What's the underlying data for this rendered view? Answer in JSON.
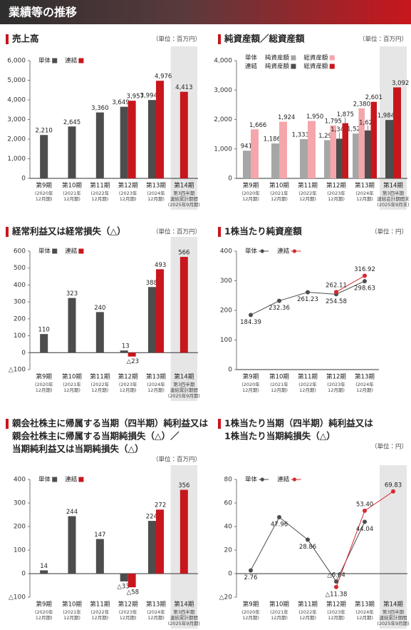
{
  "header": {
    "title": "業績等の推移"
  },
  "chart_data": [
    {
      "type": "bar",
      "title": [
        "売上高"
      ],
      "unit": "（単位：百万円）",
      "categories": [
        [
          "第9期",
          "(2020年",
          "12月期)"
        ],
        [
          "第10期",
          "(2021年",
          "12月期)"
        ],
        [
          "第11期",
          "(2022年",
          "12月期)"
        ],
        [
          "第12期",
          "(2023年",
          "12月期)"
        ],
        [
          "第13期",
          "(2024年",
          "12月期)"
        ],
        [
          "第14期",
          "第3四半期",
          "連結累計期間",
          "(2025年9月期)"
        ]
      ],
      "ylim": [
        0,
        6000
      ],
      "yticks": [
        0,
        {
          "value": 1000,
          "label": "1,000"
        },
        {
          "value": 2000,
          "label": "2,000"
        },
        {
          "value": 3000,
          "label": "3,000"
        },
        {
          "value": 4000,
          "label": "4,000"
        },
        {
          "value": 5000,
          "label": "5,000"
        },
        {
          "value": 6000,
          "label": "6,000"
        }
      ],
      "series": [
        {
          "name": "単体",
          "color": "#4d4d4d",
          "values": [
            2210,
            2645,
            3360,
            3649,
            3994,
            null
          ],
          "value_labels": [
            "2,210",
            "2,645",
            "3,360",
            "3,649",
            "3,994",
            null
          ]
        },
        {
          "name": "連結",
          "color": "#c8161d",
          "values": [
            null,
            null,
            null,
            3957,
            4976,
            4413
          ],
          "value_labels": [
            null,
            null,
            null,
            "3,957",
            "4,976",
            "4,413"
          ]
        }
      ]
    },
    {
      "type": "bar",
      "title": [
        "純資産額／総資産額"
      ],
      "unit": "（単位：百万円）",
      "categories": [
        [
          "第9期",
          "(2020年",
          "12月期)"
        ],
        [
          "第10期",
          "(2021年",
          "12月期)"
        ],
        [
          "第11期",
          "(2022年",
          "12月期)"
        ],
        [
          "第12期",
          "(2023年",
          "12月期)"
        ],
        [
          "第13期",
          "(2024年",
          "12月期)"
        ],
        [
          "第14期",
          "第3四半期",
          "連結会計期間末",
          "(2025年9月末)"
        ]
      ],
      "ylim": [
        0,
        4000
      ],
      "yticks": [
        0,
        {
          "value": 1000,
          "label": "1,000"
        },
        {
          "value": 2000,
          "label": "2,000"
        },
        {
          "value": 3000,
          "label": "3,000"
        },
        {
          "value": 4000,
          "label": "4,000"
        }
      ],
      "series": [
        {
          "group": "単体",
          "name": "純資産額",
          "color": "#a6a6a6",
          "values": [
            941,
            1186,
            1333,
            1299,
            1524,
            null
          ],
          "value_labels": [
            "941",
            "1,186",
            "1,333",
            "1,299",
            "1,524",
            null
          ]
        },
        {
          "group": "単体",
          "name": "総資産額",
          "color": "#f4a6aa",
          "values": [
            1666,
            1924,
            1950,
            1795,
            2380,
            null
          ],
          "value_labels": [
            "1,666",
            "1,924",
            "1,950",
            "1,795",
            "2,380",
            null
          ]
        },
        {
          "group": "連結",
          "name": "純資産額",
          "color": "#4d4d4d",
          "values": [
            null,
            null,
            null,
            1348,
            1629,
            1984
          ],
          "value_labels": [
            null,
            null,
            null,
            "1,348",
            "1,629",
            "1,984"
          ]
        },
        {
          "group": "連結",
          "name": "総資産額",
          "color": "#c8161d",
          "values": [
            null,
            null,
            null,
            1875,
            2601,
            3092
          ],
          "value_labels": [
            null,
            null,
            null,
            "1,875",
            "2,601",
            "3,092"
          ]
        }
      ]
    },
    {
      "type": "bar",
      "title": [
        "経常利益又は経常損失（△）"
      ],
      "unit": "（単位：百万円）",
      "categories": [
        [
          "第9期",
          "(2020年",
          "12月期)"
        ],
        [
          "第10期",
          "(2021年",
          "12月期)"
        ],
        [
          "第11期",
          "(2022年",
          "12月期)"
        ],
        [
          "第12期",
          "(2023年",
          "12月期)"
        ],
        [
          "第13期",
          "(2024年",
          "12月期)"
        ],
        [
          "第14期",
          "第3四半期",
          "連結累計期間",
          "(2025年9月期)"
        ]
      ],
      "ylim": [
        -100,
        600
      ],
      "yticks": [
        {
          "value": -100,
          "label": "△100"
        },
        0,
        100,
        200,
        300,
        400,
        500,
        600
      ],
      "series": [
        {
          "name": "単体",
          "color": "#4d4d4d",
          "values": [
            110,
            323,
            240,
            13,
            388,
            null
          ]
        },
        {
          "name": "連結",
          "color": "#c8161d",
          "values": [
            null,
            null,
            null,
            -23,
            493,
            566
          ],
          "value_labels": [
            null,
            null,
            null,
            "△23",
            "493",
            "566"
          ]
        }
      ]
    },
    {
      "type": "line",
      "title": [
        "1株当たり純資産額"
      ],
      "unit": "（単位：円）",
      "categories": [
        [
          "第9期",
          "(2020年",
          "12月期)"
        ],
        [
          "第10期",
          "(2021年",
          "12月期)"
        ],
        [
          "第11期",
          "(2022年",
          "12月期)"
        ],
        [
          "第12期",
          "(2023年",
          "12月期)"
        ],
        [
          "第13期",
          "(2024年",
          "12月期)"
        ]
      ],
      "ylim": [
        0,
        400
      ],
      "yticks": [
        0,
        100,
        200,
        300,
        400
      ],
      "series": [
        {
          "name": "単体",
          "color": "#4d4d4d",
          "values": [
            184.39,
            232.36,
            261.23,
            254.58,
            298.63
          ]
        },
        {
          "name": "連結",
          "color": "#d7282f",
          "values": [
            null,
            null,
            null,
            262.11,
            316.92
          ]
        }
      ]
    },
    {
      "type": "bar",
      "title": [
        "親会社株主に帰属する当期（四半期）純利益又は",
        "親会社株主に帰属する当期純損失（△）／",
        "当期純利益又は当期純損失（△）"
      ],
      "unit": "（単位：百万円）",
      "categories": [
        [
          "第9期",
          "(2020年",
          "12月期)"
        ],
        [
          "第10期",
          "(2021年",
          "12月期)"
        ],
        [
          "第11期",
          "(2022年",
          "12月期)"
        ],
        [
          "第12期",
          "(2023年",
          "12月期)"
        ],
        [
          "第13期",
          "(2024年",
          "12月期)"
        ],
        [
          "第14期",
          "第3四半期",
          "連結累計期間",
          "(2025年9月期)"
        ]
      ],
      "ylim": [
        -100,
        400
      ],
      "yticks": [
        {
          "value": -100,
          "label": "△100"
        },
        0,
        100,
        200,
        300,
        400
      ],
      "series": [
        {
          "name": "単体",
          "color": "#4d4d4d",
          "values": [
            14,
            244,
            147,
            -33,
            224,
            null
          ],
          "value_labels": [
            "14",
            "244",
            "147",
            "△33",
            "224",
            null
          ]
        },
        {
          "name": "連結",
          "color": "#c8161d",
          "values": [
            null,
            null,
            null,
            -58,
            272,
            356
          ],
          "value_labels": [
            null,
            null,
            null,
            "△58",
            "272",
            "356"
          ]
        }
      ]
    },
    {
      "type": "line",
      "title": [
        "1株当たり当期（四半期）純利益又は",
        "1株当たり当期純損失（△）"
      ],
      "unit": "（単位：円）",
      "categories": [
        [
          "第9期",
          "(2020年",
          "12月期)"
        ],
        [
          "第10期",
          "(2021年",
          "12月期)"
        ],
        [
          "第11期",
          "(2022年",
          "12月期)"
        ],
        [
          "第12期",
          "(2023年",
          "12月期)"
        ],
        [
          "第13期",
          "(2024年",
          "12月期)"
        ],
        [
          "第14期",
          "第3四半期",
          "連結累計期間",
          "(2025年9月期)"
        ]
      ],
      "ylim": [
        -20,
        80
      ],
      "yticks": [
        {
          "value": -20,
          "label": "△20"
        },
        0,
        20,
        40,
        60,
        80
      ],
      "series": [
        {
          "name": "単体",
          "color": "#4d4d4d",
          "values": [
            2.76,
            47.96,
            28.86,
            -6.64,
            44.04,
            null
          ],
          "value_labels": [
            "2.76",
            "47.96",
            "28.86",
            "△6.64",
            "44.04",
            null
          ]
        },
        {
          "name": "連結",
          "color": "#d7282f",
          "values": [
            null,
            null,
            null,
            -11.38,
            53.4,
            69.83
          ],
          "value_labels": [
            null,
            null,
            null,
            "△11.38",
            "53.40",
            "69.83"
          ]
        }
      ]
    }
  ]
}
